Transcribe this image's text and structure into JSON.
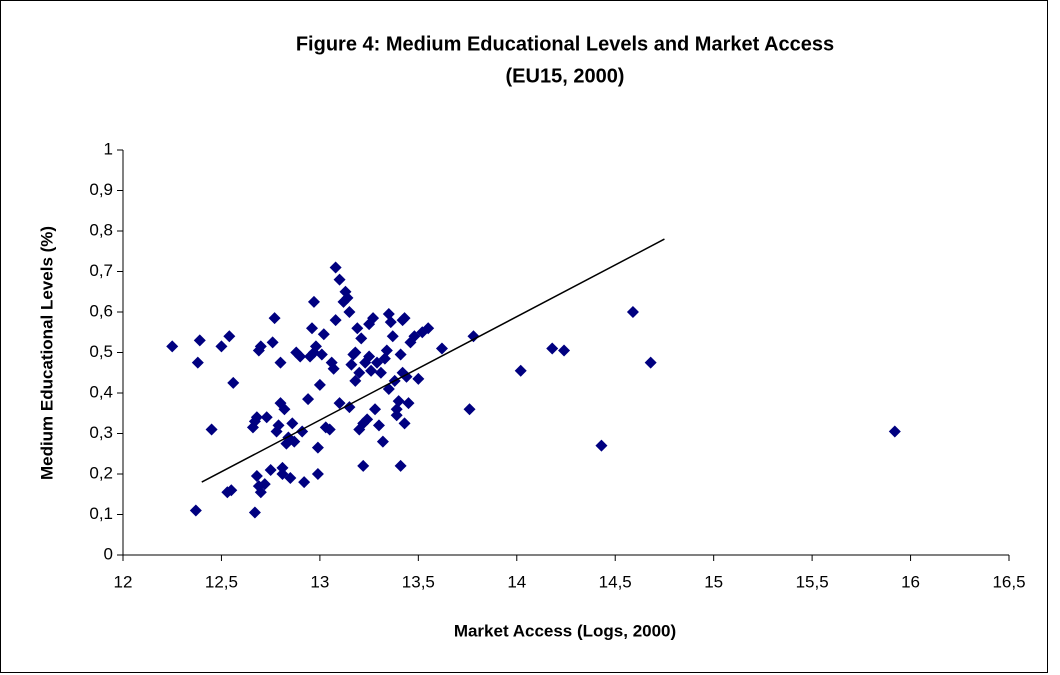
{
  "chart_data": {
    "type": "scatter",
    "title": "Figure 4: Medium Educational Levels and Market Access",
    "subtitle": "(EU15, 2000)",
    "x_label": "Market Access (Logs, 2000)",
    "y_label": "Medium Educational Levels (%)",
    "xlim": [
      12,
      16.5
    ],
    "ylim": [
      0,
      1
    ],
    "xticks": [
      12,
      {
        "value": 12.5,
        "label": "12,5"
      },
      13,
      {
        "value": 13.5,
        "label": "13,5"
      },
      14,
      {
        "value": 14.5,
        "label": "14,5"
      },
      15,
      {
        "value": 15.5,
        "label": "15,5"
      },
      16,
      {
        "value": 16.5,
        "label": "16,5"
      }
    ],
    "yticks": [
      0,
      {
        "value": 0.1,
        "label": "0,1"
      },
      {
        "value": 0.2,
        "label": "0,2"
      },
      {
        "value": 0.3,
        "label": "0,3"
      },
      {
        "value": 0.4,
        "label": "0,4"
      },
      {
        "value": 0.5,
        "label": "0,5"
      },
      {
        "value": 0.6,
        "label": "0,6"
      },
      {
        "value": 0.7,
        "label": "0,7"
      },
      {
        "value": 0.8,
        "label": "0,8"
      },
      {
        "value": 0.9,
        "label": "0,9"
      },
      1
    ],
    "color": "#000080",
    "trend_color": "#000000",
    "trendline": {
      "x": [
        12.4,
        14.75
      ],
      "y": [
        0.18,
        0.78
      ]
    },
    "x": [
      12.25,
      12.37,
      12.38,
      12.39,
      12.45,
      12.5,
      12.54,
      12.53,
      12.55,
      12.56,
      12.66,
      12.67,
      12.67,
      12.68,
      12.68,
      12.69,
      12.7,
      12.69,
      12.7,
      12.72,
      12.73,
      12.75,
      12.76,
      12.77,
      12.78,
      12.79,
      12.8,
      12.8,
      12.81,
      12.81,
      12.82,
      12.83,
      12.84,
      12.85,
      12.86,
      12.87,
      12.88,
      12.9,
      12.91,
      12.92,
      12.94,
      12.95,
      12.96,
      12.97,
      12.97,
      12.98,
      12.99,
      12.99,
      13.0,
      13.01,
      13.02,
      13.03,
      13.05,
      13.06,
      13.07,
      13.08,
      13.08,
      13.1,
      13.1,
      13.12,
      13.13,
      13.14,
      13.15,
      13.15,
      13.16,
      13.17,
      13.18,
      13.18,
      13.19,
      13.2,
      13.2,
      13.21,
      13.22,
      13.22,
      13.23,
      13.24,
      13.25,
      13.25,
      13.26,
      13.27,
      13.28,
      13.29,
      13.3,
      13.31,
      13.32,
      13.33,
      13.34,
      13.35,
      13.35,
      13.36,
      13.37,
      13.38,
      13.39,
      13.39,
      13.4,
      13.41,
      13.41,
      13.42,
      13.42,
      13.43,
      13.43,
      13.44,
      13.45,
      13.46,
      13.48,
      13.5,
      13.52,
      13.55,
      13.62,
      13.76,
      13.78,
      14.02,
      14.18,
      14.24,
      14.43,
      14.59,
      14.68,
      15.92
    ],
    "y": [
      0.515,
      0.11,
      0.475,
      0.53,
      0.31,
      0.515,
      0.54,
      0.155,
      0.16,
      0.425,
      0.315,
      0.33,
      0.105,
      0.34,
      0.195,
      0.505,
      0.515,
      0.17,
      0.155,
      0.175,
      0.34,
      0.21,
      0.525,
      0.585,
      0.305,
      0.32,
      0.375,
      0.475,
      0.215,
      0.2,
      0.36,
      0.275,
      0.29,
      0.19,
      0.325,
      0.28,
      0.5,
      0.49,
      0.305,
      0.18,
      0.385,
      0.49,
      0.56,
      0.625,
      0.5,
      0.515,
      0.265,
      0.2,
      0.42,
      0.495,
      0.545,
      0.315,
      0.31,
      0.475,
      0.46,
      0.71,
      0.58,
      0.375,
      0.68,
      0.625,
      0.65,
      0.635,
      0.6,
      0.365,
      0.47,
      0.495,
      0.43,
      0.5,
      0.56,
      0.45,
      0.31,
      0.535,
      0.325,
      0.22,
      0.475,
      0.335,
      0.57,
      0.49,
      0.455,
      0.585,
      0.36,
      0.475,
      0.32,
      0.45,
      0.28,
      0.485,
      0.505,
      0.41,
      0.595,
      0.575,
      0.54,
      0.43,
      0.36,
      0.345,
      0.38,
      0.495,
      0.22,
      0.45,
      0.58,
      0.325,
      0.585,
      0.44,
      0.375,
      0.525,
      0.54,
      0.435,
      0.55,
      0.56,
      0.51,
      0.36,
      0.54,
      0.455,
      0.51,
      0.505,
      0.27,
      0.6,
      0.475,
      0.305
    ]
  }
}
